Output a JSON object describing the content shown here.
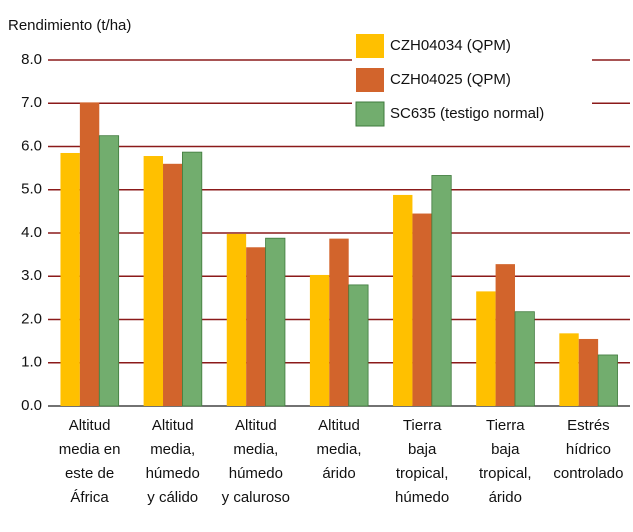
{
  "chart_data": {
    "type": "bar",
    "y_label": "Rendimiento (t/ha)",
    "categories": [
      [
        "Altitud",
        "media en",
        "este de",
        "África"
      ],
      [
        "Altitud",
        "media,",
        "húmedo",
        "y cálido"
      ],
      [
        "Altitud",
        "media,",
        "húmedo",
        "y caluroso"
      ],
      [
        "Altitud",
        "media,",
        "árido"
      ],
      [
        "Tierra",
        "baja",
        "tropical,",
        "húmedo"
      ],
      [
        "Tierra",
        "baja",
        "tropical,",
        "árido"
      ],
      [
        "Estrés",
        "hídrico",
        "controlado"
      ]
    ],
    "series": [
      {
        "name": "CZH04034 (QPM)",
        "color": "#ffc000",
        "values": [
          5.85,
          5.78,
          3.98,
          3.03,
          4.88,
          2.65,
          1.68
        ]
      },
      {
        "name": "CZH04025 (QPM)",
        "color": "#d2642c",
        "values": [
          7.02,
          5.6,
          3.67,
          3.87,
          4.45,
          3.28,
          1.55
        ]
      },
      {
        "name": "SC635 (testigo normal)",
        "color": "#72ad6e",
        "values": [
          6.25,
          5.87,
          3.88,
          2.8,
          5.33,
          2.18,
          1.18
        ]
      }
    ],
    "ylim": [
      0,
      8
    ],
    "yticks": [
      {
        "value": 0,
        "label": "0.0"
      },
      {
        "value": 1,
        "label": "1.0"
      },
      {
        "value": 2,
        "label": "2.0"
      },
      {
        "value": 3,
        "label": "3.0"
      },
      {
        "value": 4,
        "label": "4.0"
      },
      {
        "value": 5,
        "label": "5.0"
      },
      {
        "value": 6,
        "label": "6.0"
      },
      {
        "value": 7,
        "label": "7.0"
      },
      {
        "value": 8,
        "label": "8.0"
      }
    ],
    "grid": true,
    "legend": "top-right"
  }
}
